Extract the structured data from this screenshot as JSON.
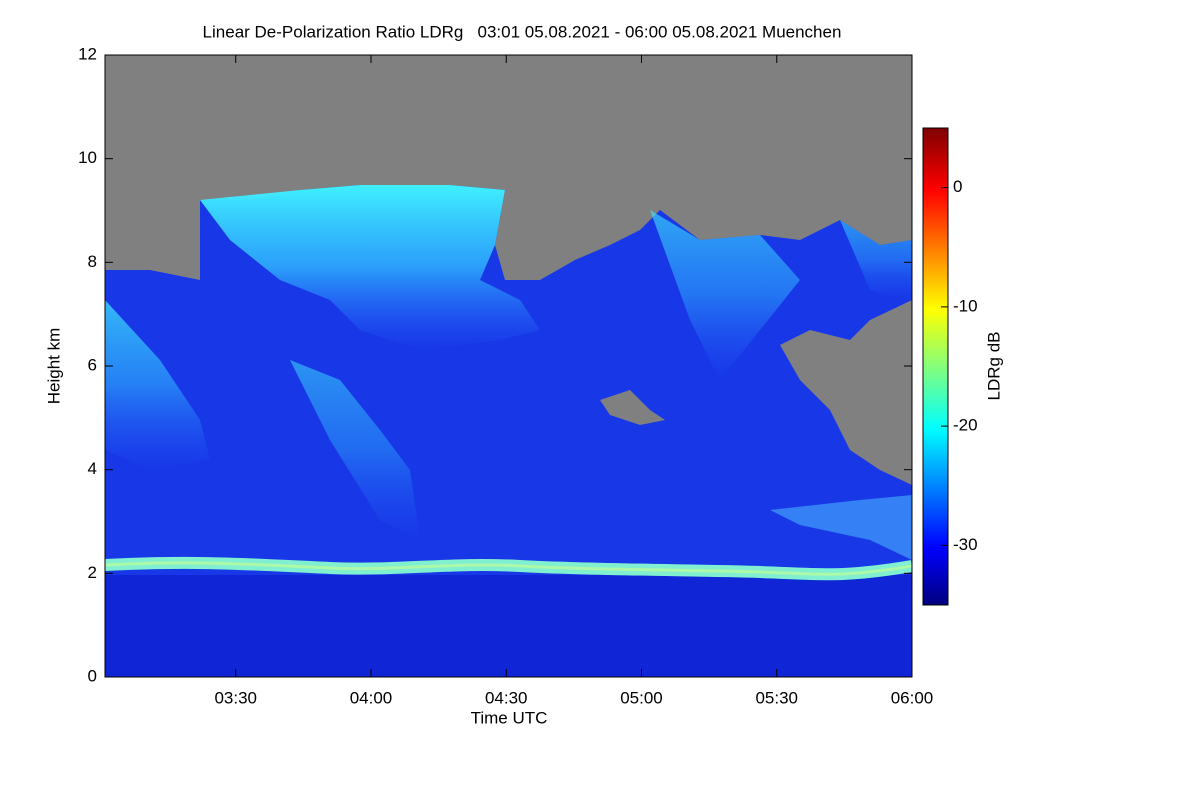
{
  "chart_data": {
    "type": "heatmap",
    "title": "Linear De-Polarization Ratio LDRg   03:01 05.08.2021 - 06:00 05.08.2021 Muenchen",
    "x_label": "Time UTC",
    "y_label": "Height km",
    "colorbar_label": "LDRg dB",
    "xlim": [
      181,
      360
    ],
    "xticks": [
      {
        "value": 210,
        "label": "03:30"
      },
      {
        "value": 240,
        "label": "04:00"
      },
      {
        "value": 270,
        "label": "04:30"
      },
      {
        "value": 300,
        "label": "05:00"
      },
      {
        "value": 330,
        "label": "05:30"
      },
      {
        "value": 360,
        "label": "06:00"
      }
    ],
    "ylim": [
      0,
      12
    ],
    "yticks": [
      0,
      2,
      4,
      6,
      8,
      10,
      12
    ],
    "clim": [
      -35,
      5
    ],
    "cticks": [
      -30,
      -20,
      -10,
      0
    ]
  }
}
